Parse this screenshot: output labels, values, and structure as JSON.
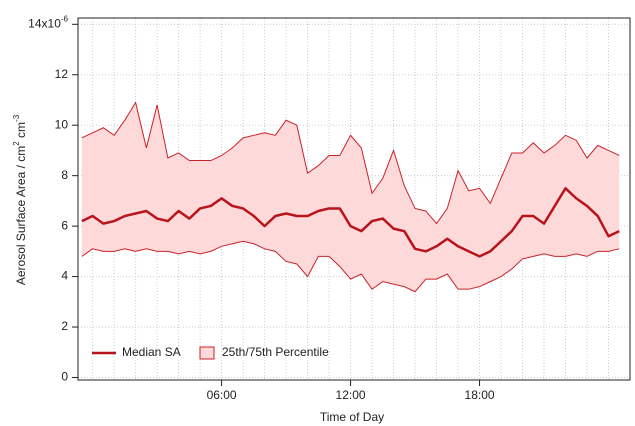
{
  "chart_data": {
    "type": "line",
    "xlabel": "Time of Day",
    "ylabel": [
      "Aerosol Surface Area / cm",
      "2",
      " cm",
      "-3"
    ],
    "y_exponent": "-6",
    "xlim": [
      -0.68,
      25.0
    ],
    "ylim": [
      -0.1,
      14.25
    ],
    "xticks": [
      {
        "value": 6,
        "label": "06:00"
      },
      {
        "value": 12,
        "label": "12:00"
      },
      {
        "value": 18,
        "label": "18:00"
      }
    ],
    "xminorticks": [
      0,
      1,
      2,
      3,
      4,
      5,
      6,
      7,
      8,
      9,
      10,
      11,
      12,
      13,
      14,
      15,
      16,
      17,
      18,
      19,
      20,
      21,
      22,
      23,
      24
    ],
    "yticks": [
      0,
      2,
      4,
      6,
      8,
      10,
      12,
      {
        "value": 14,
        "label": "14x10"
      }
    ],
    "grid": true,
    "legend": "lower left",
    "x": [
      -0.5,
      0,
      0.5,
      1,
      1.5,
      2,
      2.5,
      3,
      3.5,
      4,
      4.5,
      5,
      5.5,
      6,
      6.5,
      7,
      7.5,
      8,
      8.5,
      9,
      9.5,
      10,
      10.5,
      11,
      11.5,
      12,
      12.5,
      13,
      13.5,
      14,
      14.5,
      15,
      15.5,
      16,
      16.5,
      17,
      17.5,
      18,
      18.5,
      19,
      19.5,
      20,
      20.5,
      21,
      21.5,
      22,
      22.5,
      23,
      23.5,
      24,
      24.5
    ],
    "series": [
      {
        "name": "Median SA",
        "color": "#b8141c",
        "values": [
          6.2,
          6.4,
          6.1,
          6.2,
          6.4,
          6.5,
          6.6,
          6.3,
          6.2,
          6.6,
          6.3,
          6.7,
          6.8,
          7.1,
          6.8,
          6.7,
          6.4,
          6.0,
          6.4,
          6.5,
          6.4,
          6.4,
          6.6,
          6.7,
          6.7,
          6.0,
          5.8,
          6.2,
          6.3,
          5.9,
          5.8,
          5.1,
          5.0,
          5.2,
          5.5,
          5.2,
          5.0,
          4.8,
          5.0,
          5.4,
          5.8,
          6.4,
          6.4,
          6.1,
          6.8,
          7.5,
          7.1,
          6.8,
          6.4,
          5.6,
          5.8
        ]
      },
      {
        "name": "25th/75th Percentile",
        "color": "#c8232b",
        "fill": "#fdd9d9",
        "upper": [
          9.5,
          9.7,
          9.9,
          9.6,
          10.2,
          10.9,
          9.1,
          10.8,
          8.7,
          8.9,
          8.6,
          8.6,
          8.6,
          8.8,
          9.1,
          9.5,
          9.6,
          9.7,
          9.6,
          10.2,
          10.0,
          8.1,
          8.4,
          8.8,
          8.8,
          9.6,
          9.1,
          7.3,
          7.9,
          9.0,
          7.6,
          6.7,
          6.6,
          6.1,
          6.7,
          8.2,
          7.4,
          7.5,
          6.9,
          7.9,
          8.9,
          8.9,
          9.3,
          8.9,
          9.2,
          9.6,
          9.4,
          8.7,
          9.2,
          9.0,
          8.8
        ],
        "lower": [
          4.8,
          5.1,
          5.0,
          5.0,
          5.1,
          5.0,
          5.1,
          5.0,
          5.0,
          4.9,
          5.0,
          4.9,
          5.0,
          5.2,
          5.3,
          5.4,
          5.3,
          5.1,
          5.0,
          4.6,
          4.5,
          4.0,
          4.8,
          4.8,
          4.4,
          3.9,
          4.1,
          3.5,
          3.8,
          3.7,
          3.6,
          3.4,
          3.9,
          3.9,
          4.1,
          3.5,
          3.5,
          3.6,
          3.8,
          4.0,
          4.3,
          4.7,
          4.8,
          4.9,
          4.8,
          4.8,
          4.9,
          4.8,
          5.0,
          5.0,
          5.1
        ]
      }
    ]
  }
}
